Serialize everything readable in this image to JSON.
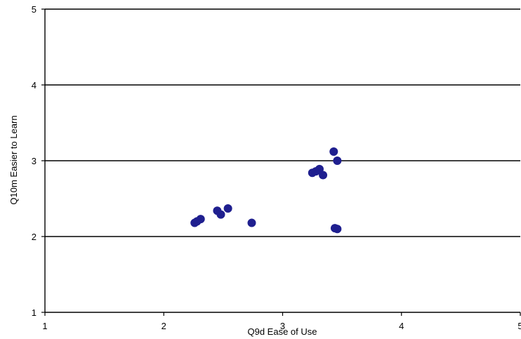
{
  "chart_data": {
    "type": "scatter",
    "title": "",
    "xlabel": "Q9d Ease of Use",
    "ylabel": "Q10m Easier to Learn",
    "xlim": [
      1,
      5
    ],
    "ylim": [
      1,
      5
    ],
    "x_ticks": [
      "1",
      "2",
      "3",
      "4",
      "5"
    ],
    "y_ticks": [
      "1",
      "2",
      "3",
      "4",
      "5"
    ],
    "grid": "horizontal",
    "legend": "none",
    "marker_color": "#1f1f8f",
    "points": [
      {
        "x": 2.26,
        "y": 2.18
      },
      {
        "x": 2.28,
        "y": 2.2
      },
      {
        "x": 2.31,
        "y": 2.23
      },
      {
        "x": 2.45,
        "y": 2.34
      },
      {
        "x": 2.48,
        "y": 2.29
      },
      {
        "x": 2.54,
        "y": 2.37
      },
      {
        "x": 2.74,
        "y": 2.18
      },
      {
        "x": 3.25,
        "y": 2.84
      },
      {
        "x": 3.28,
        "y": 2.86
      },
      {
        "x": 3.31,
        "y": 2.89
      },
      {
        "x": 3.34,
        "y": 2.81
      },
      {
        "x": 3.43,
        "y": 3.12
      },
      {
        "x": 3.46,
        "y": 3.0
      },
      {
        "x": 3.44,
        "y": 2.11
      },
      {
        "x": 3.46,
        "y": 2.1
      }
    ]
  }
}
